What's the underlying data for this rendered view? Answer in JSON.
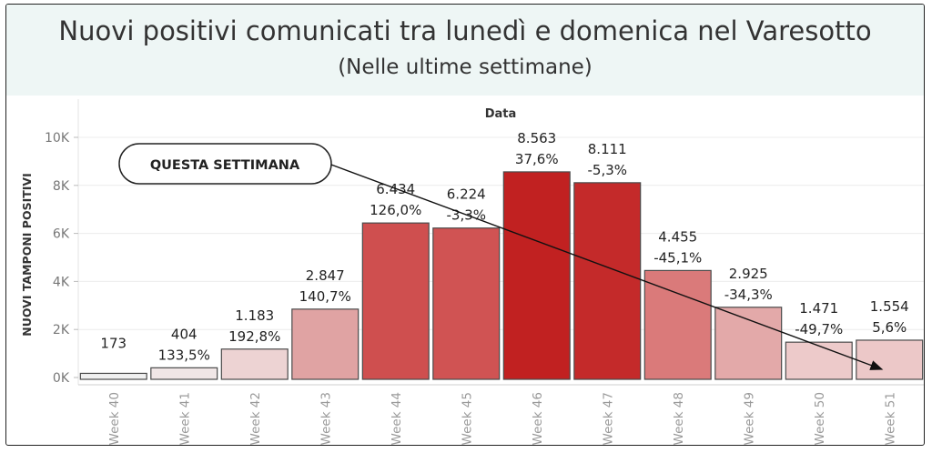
{
  "header": {
    "title": "Nuovi positivi comunicati tra lunedì e domenica nel Varesotto",
    "subtitle": "(Nelle ultime settimane)"
  },
  "annotation": {
    "label": "QUESTA SETTIMANA"
  },
  "chart_data": {
    "type": "bar",
    "xlabel": "Data",
    "ylabel": "NUOVI TAMPONI POSITIVI",
    "ylim": [
      0,
      10000
    ],
    "yticks": [
      0,
      2000,
      4000,
      6000,
      8000,
      10000
    ],
    "ytick_labels": [
      "0K",
      "2K",
      "4K",
      "6K",
      "8K",
      "10K"
    ],
    "grid": true,
    "categories": [
      "Week 40",
      "Week 41",
      "Week 42",
      "Week 43",
      "Week 44",
      "Week 45",
      "Week 46",
      "Week 47",
      "Week 48",
      "Week 49",
      "Week 50",
      "Week 51"
    ],
    "values": [
      173,
      404,
      1183,
      2847,
      6434,
      6224,
      8563,
      8111,
      4455,
      2925,
      1471,
      1554
    ],
    "value_labels": [
      "173",
      "404",
      "1.183",
      "2.847",
      "6.434",
      "6.224",
      "8.563",
      "8.111",
      "4.455",
      "2.925",
      "1.471",
      "1.554"
    ],
    "change_labels": [
      "",
      "133,5%",
      "192,8%",
      "140,7%",
      "126,0%",
      "-3,3%",
      "37,6%",
      "-5,3%",
      "-45,1%",
      "-34,3%",
      "-49,7%",
      "5,6%"
    ],
    "colors": [
      "#f0f0f0",
      "#f0e6e6",
      "#edd3d3",
      "#e0a3a3",
      "#cf4f4f",
      "#d05353",
      "#c12121",
      "#c42a2a",
      "#da7a7a",
      "#e3a9a9",
      "#edcaca",
      "#ecc8c8"
    ]
  }
}
